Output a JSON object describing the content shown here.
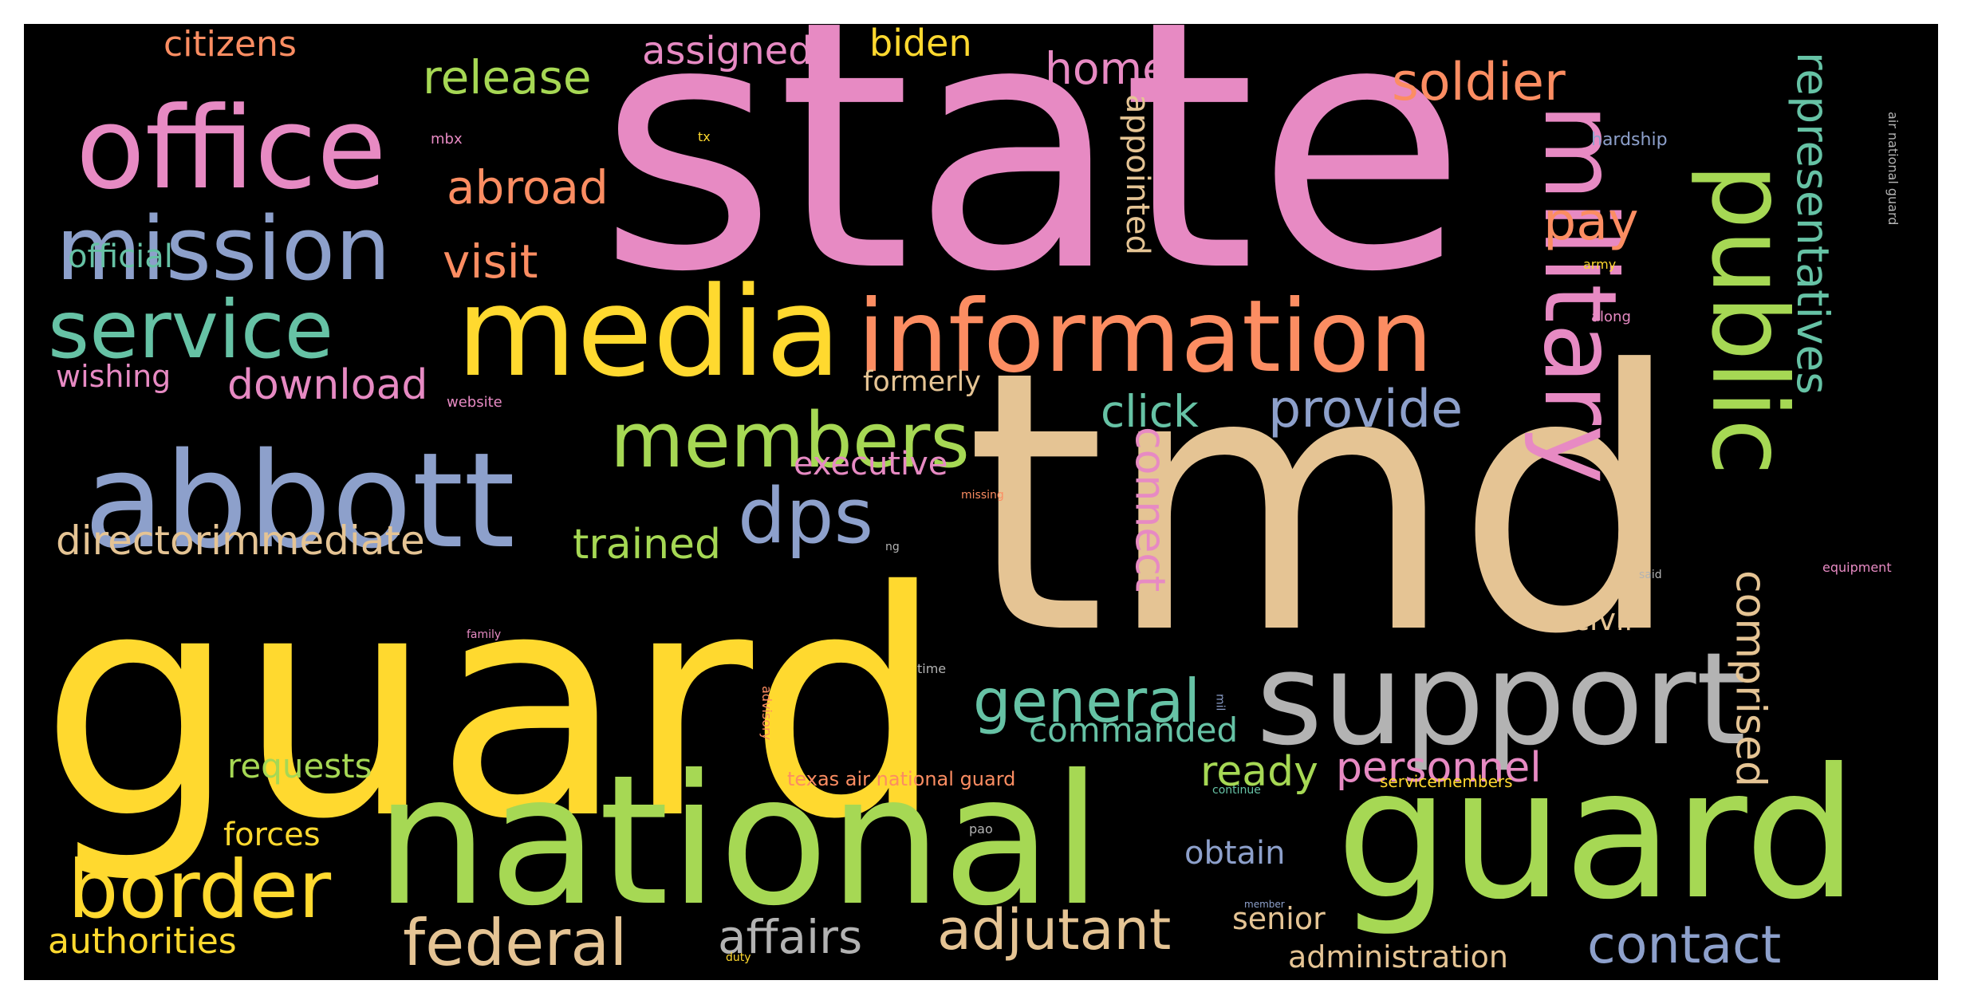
{
  "background_color": "#000000",
  "palette": {
    "pink": "#e78ac3",
    "yellow": "#ffd92f",
    "green": "#a6d854",
    "teal": "#66c2a5",
    "orange": "#fc8d62",
    "blue": "#8da0cb",
    "tan": "#e5c494",
    "gray": "#b3b3b3"
  },
  "words": [
    {
      "text": "state",
      "color": "pink"
    },
    {
      "text": "tmd",
      "color": "tan"
    },
    {
      "text": "guard",
      "color": "yellow"
    },
    {
      "text": "national",
      "color": "green"
    },
    {
      "text": "guard",
      "color": "green"
    },
    {
      "text": "support",
      "color": "gray"
    },
    {
      "text": "media",
      "color": "yellow"
    },
    {
      "text": "information",
      "color": "orange"
    },
    {
      "text": "abbott",
      "color": "blue"
    },
    {
      "text": "office",
      "color": "pink"
    },
    {
      "text": "military",
      "color": "pink"
    },
    {
      "text": "public",
      "color": "green"
    },
    {
      "text": "mission",
      "color": "blue"
    },
    {
      "text": "service",
      "color": "teal"
    },
    {
      "text": "border",
      "color": "yellow"
    },
    {
      "text": "members",
      "color": "green"
    },
    {
      "text": "dps",
      "color": "blue"
    },
    {
      "text": "general",
      "color": "teal"
    },
    {
      "text": "federal",
      "color": "tan"
    },
    {
      "text": "adjutant",
      "color": "tan"
    },
    {
      "text": "soldier",
      "color": "orange"
    },
    {
      "text": "representatives",
      "color": "teal"
    },
    {
      "text": "comprised",
      "color": "tan"
    },
    {
      "text": "contact",
      "color": "blue"
    },
    {
      "text": "provide",
      "color": "blue"
    },
    {
      "text": "affairs",
      "color": "gray"
    },
    {
      "text": "personnel",
      "color": "pink"
    },
    {
      "text": "release",
      "color": "green"
    },
    {
      "text": "download",
      "color": "pink"
    },
    {
      "text": "directorimmediate",
      "color": "tan"
    },
    {
      "text": "trained",
      "color": "green"
    },
    {
      "text": "click",
      "color": "teal"
    },
    {
      "text": "connect",
      "color": "pink"
    },
    {
      "text": "ready",
      "color": "green"
    },
    {
      "text": "pay",
      "color": "orange"
    },
    {
      "text": "abroad",
      "color": "orange"
    },
    {
      "text": "visit",
      "color": "orange"
    },
    {
      "text": "home",
      "color": "pink"
    },
    {
      "text": "appointed",
      "color": "tan"
    },
    {
      "text": "commanded",
      "color": "teal"
    },
    {
      "text": "assigned",
      "color": "pink"
    },
    {
      "text": "biden",
      "color": "yellow"
    },
    {
      "text": "citizens",
      "color": "orange"
    },
    {
      "text": "official",
      "color": "teal"
    },
    {
      "text": "wishing",
      "color": "pink"
    },
    {
      "text": "executive",
      "color": "pink"
    },
    {
      "text": "formerly",
      "color": "tan"
    },
    {
      "text": "civil",
      "color": "tan"
    },
    {
      "text": "requests",
      "color": "green"
    },
    {
      "text": "forces",
      "color": "yellow"
    },
    {
      "text": "authorities",
      "color": "yellow"
    },
    {
      "text": "obtain",
      "color": "blue"
    },
    {
      "text": "senior",
      "color": "tan"
    },
    {
      "text": "administration",
      "color": "tan"
    },
    {
      "text": "texas air national guard",
      "color": "orange"
    },
    {
      "text": "servicemembers",
      "color": "yellow"
    },
    {
      "text": "hardship",
      "color": "blue"
    },
    {
      "text": "air national guard",
      "color": "gray"
    },
    {
      "text": "army",
      "color": "yellow"
    },
    {
      "text": "along",
      "color": "pink"
    },
    {
      "text": "equipment",
      "color": "pink"
    },
    {
      "text": "said",
      "color": "gray"
    },
    {
      "text": "mbx",
      "color": "pink"
    },
    {
      "text": "tx",
      "color": "yellow"
    },
    {
      "text": "website",
      "color": "pink"
    },
    {
      "text": "missing",
      "color": "orange"
    },
    {
      "text": "ng",
      "color": "gray"
    },
    {
      "text": "family",
      "color": "pink"
    },
    {
      "text": "time",
      "color": "gray"
    },
    {
      "text": "advisory",
      "color": "orange"
    },
    {
      "text": "mil",
      "color": "blue"
    },
    {
      "text": "pao",
      "color": "gray"
    },
    {
      "text": "continue",
      "color": "teal"
    },
    {
      "text": "member",
      "color": "blue"
    },
    {
      "text": "duty",
      "color": "yellow"
    }
  ]
}
